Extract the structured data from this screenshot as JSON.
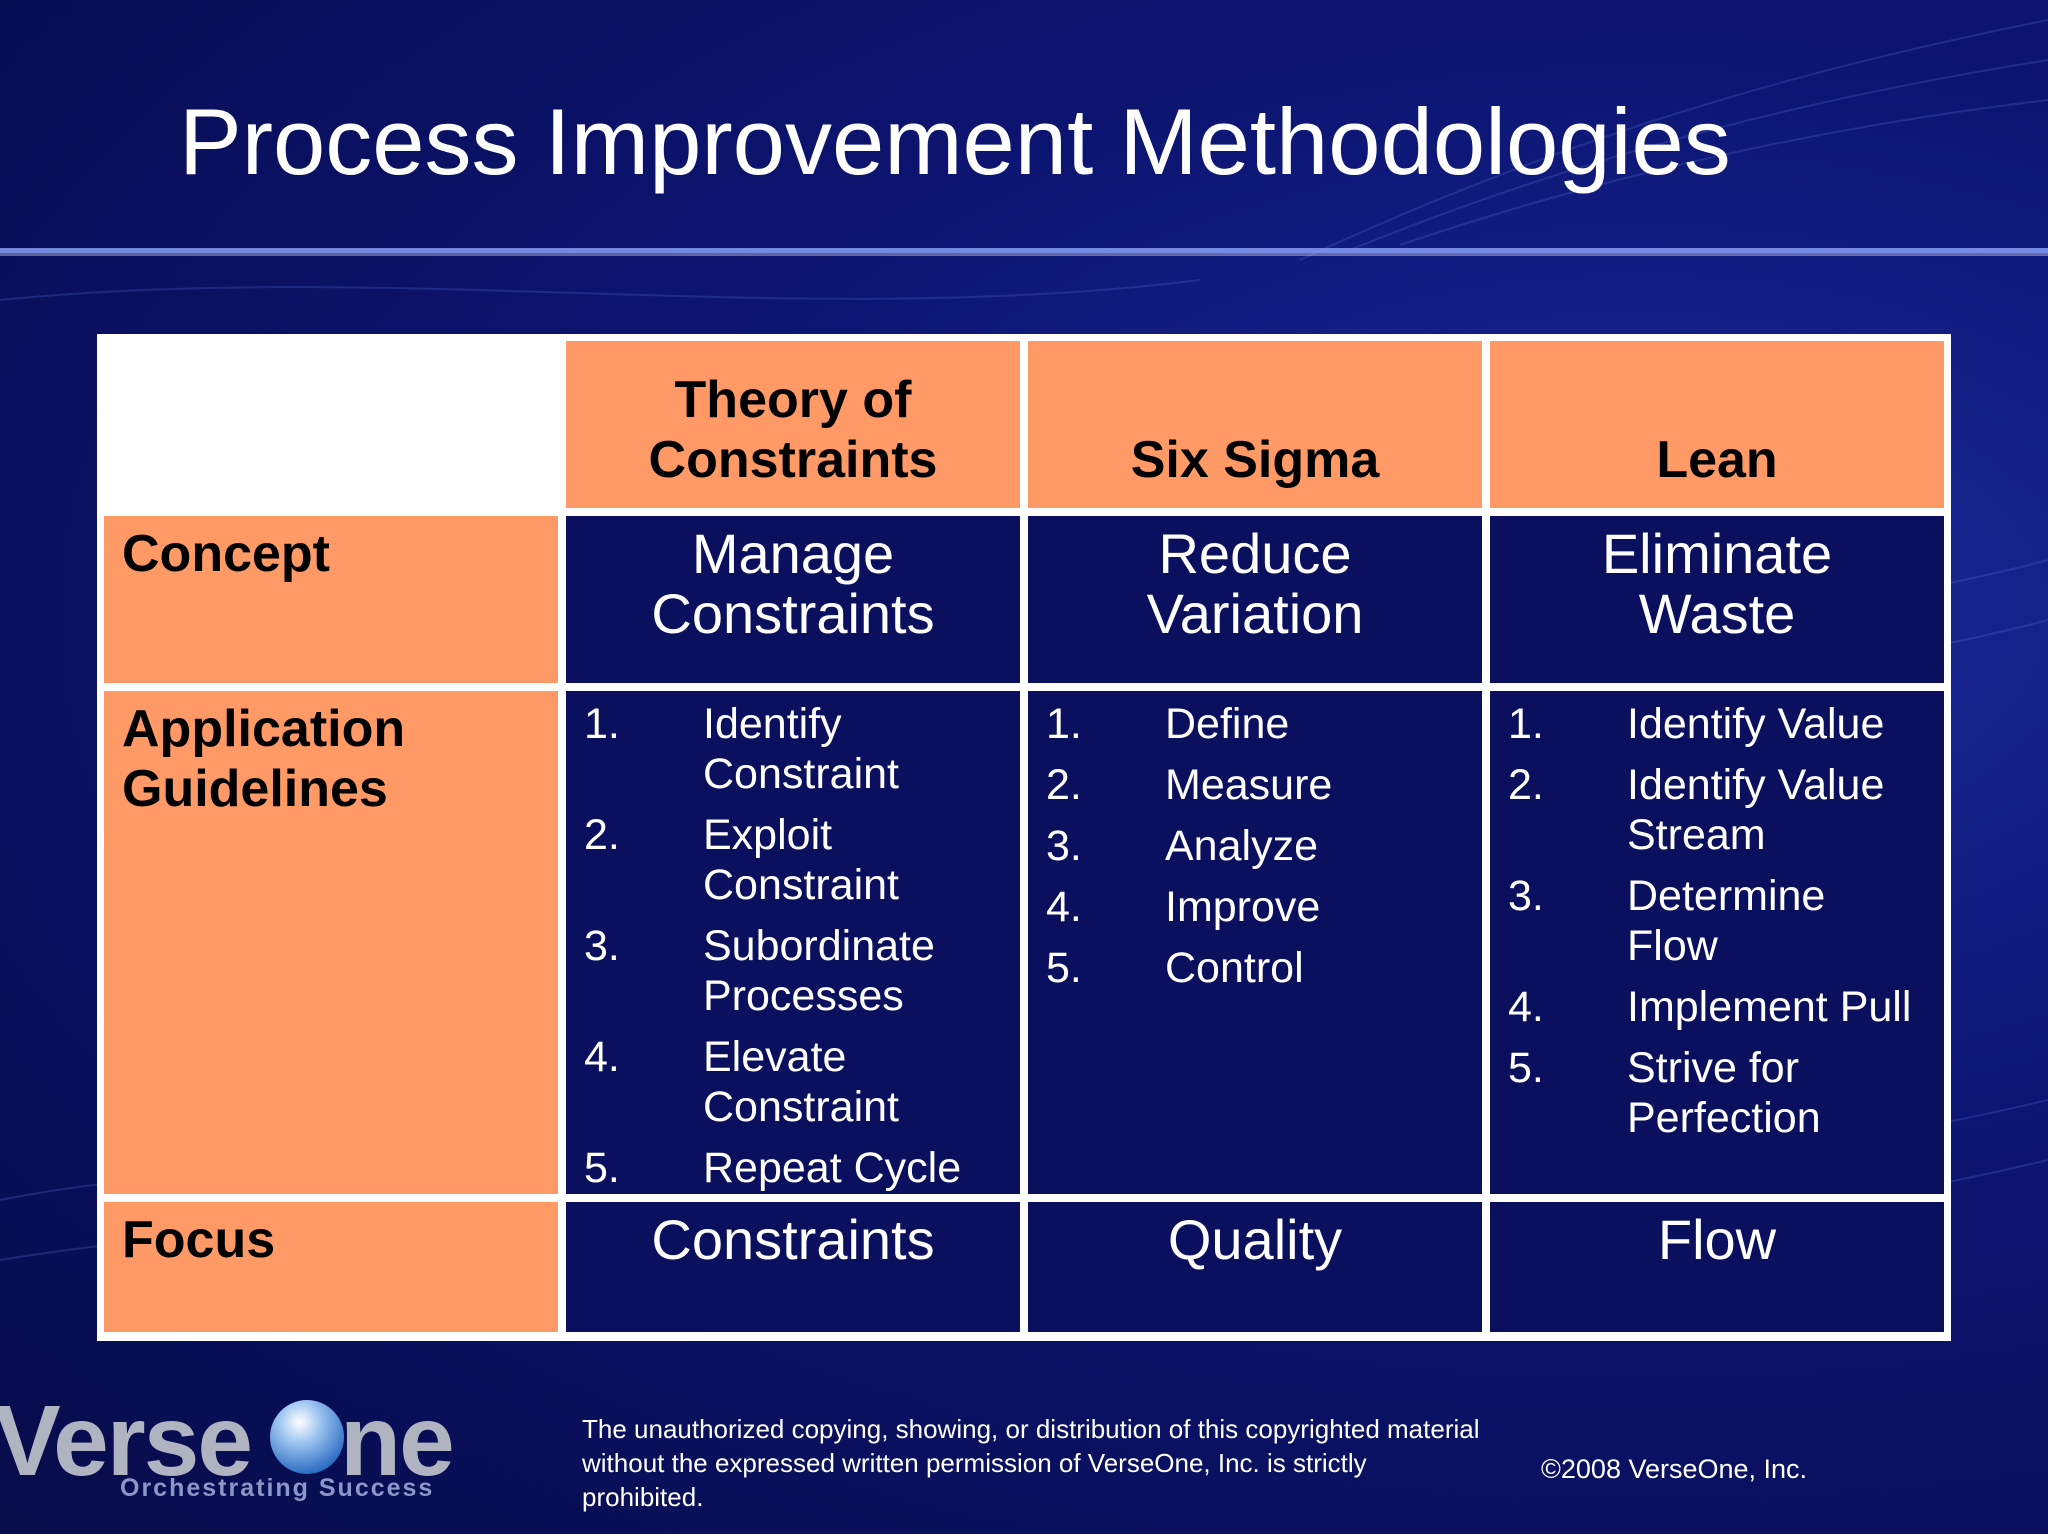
{
  "title": "Process Improvement Methodologies",
  "table": {
    "headers": [
      "Theory of Constraints",
      "Six Sigma",
      "Lean"
    ],
    "rows": [
      {
        "label": "Concept",
        "cells": [
          "Manage Constraints",
          "Reduce Variation",
          "Eliminate Waste"
        ]
      },
      {
        "label": "Application Guidelines",
        "lists": [
          [
            {
              "num": "1.",
              "text": "Identify Constraint"
            },
            {
              "num": "2.",
              "text": "Exploit Constraint"
            },
            {
              "num": "3.",
              "text": "Subordinate Processes"
            },
            {
              "num": "4.",
              "text": "Elevate Constraint"
            },
            {
              "num": "5.",
              "text": "Repeat Cycle"
            }
          ],
          [
            {
              "num": "1.",
              "text": "Define"
            },
            {
              "num": "2.",
              "text": "Measure"
            },
            {
              "num": "3.",
              "text": "Analyze"
            },
            {
              "num": "4.",
              "text": "Improve"
            },
            {
              "num": "5.",
              "text": "Control"
            }
          ],
          [
            {
              "num": "1.",
              "text": "Identify Value"
            },
            {
              "num": "2.",
              "text": "Identify Value Stream"
            },
            {
              "num": "3.",
              "text": "Determine Flow"
            },
            {
              "num": "4.",
              "text": "Implement Pull"
            },
            {
              "num": "5.",
              "text": "Strive for Perfection"
            }
          ]
        ]
      },
      {
        "label": "Focus",
        "cells": [
          "Constraints",
          "Quality",
          "Flow"
        ]
      }
    ]
  },
  "footer": {
    "logo": {
      "left": "Verse",
      "right": "ne",
      "tagline": "Orchestrating Success"
    },
    "disclaimer": "The unauthorized copying, showing, or distribution of this copyrighted material without the expressed written permission of VerseOne, Inc. is strictly prohibited.",
    "copyright": "©2008 VerseOne, Inc."
  }
}
